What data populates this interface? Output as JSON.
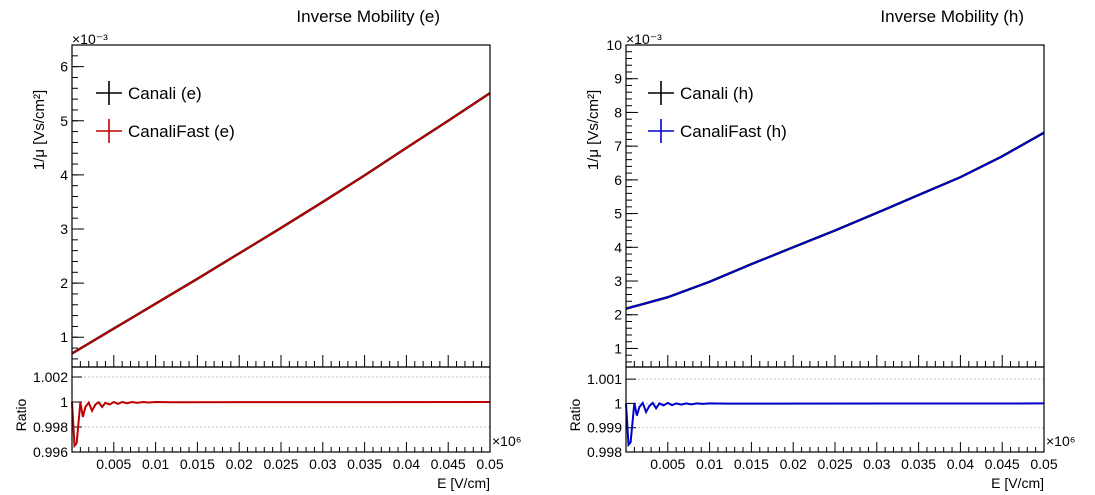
{
  "colors": {
    "axis": "#000000",
    "grid": "#c8c8c8",
    "black": "#000000",
    "red": "#c00000",
    "blue": "#0000cc"
  },
  "chart_data": [
    {
      "type": "line",
      "title": "Inverse Mobility (e)",
      "ylabel": "1/μ [Vs/cm²]",
      "y_exponent": "×10⁻³",
      "xlabel": "E [V/cm]",
      "x_exponent": "×10⁶",
      "xlim": [
        0,
        0.05
      ],
      "ylim": [
        0.45,
        6.4
      ],
      "x_ticks": [
        0.005,
        0.01,
        0.015,
        0.02,
        0.025,
        0.03,
        0.035,
        0.04,
        0.045,
        0.05
      ],
      "x_tick_labels": [
        "0.005",
        "0.01",
        "0.015",
        "0.02",
        "0.025",
        "0.03",
        "0.035",
        "0.04",
        "0.045",
        "0.05"
      ],
      "y_ticks": [
        1,
        2,
        3,
        4,
        5,
        6
      ],
      "y_tick_labels": [
        "1",
        "2",
        "3",
        "4",
        "5",
        "6"
      ],
      "legend": {
        "placement": "top-left",
        "entries": [
          {
            "label": "Canali (e)",
            "color": "#000000"
          },
          {
            "label": "CanaliFast (e)",
            "color": "#c00000"
          }
        ]
      },
      "series": [
        {
          "name": "Canali (e)",
          "color": "#000000",
          "x": [
            0,
            0.005,
            0.01,
            0.015,
            0.02,
            0.025,
            0.03,
            0.035,
            0.04,
            0.045,
            0.05
          ],
          "y": [
            0.7,
            1.16,
            1.62,
            2.08,
            2.55,
            3.02,
            3.5,
            3.99,
            4.5,
            5.0,
            5.51
          ]
        },
        {
          "name": "CanaliFast (e)",
          "color": "#c00000",
          "x": [
            0,
            0.005,
            0.01,
            0.015,
            0.02,
            0.025,
            0.03,
            0.035,
            0.04,
            0.045,
            0.05
          ],
          "y": [
            0.7,
            1.16,
            1.62,
            2.08,
            2.55,
            3.02,
            3.5,
            3.99,
            4.5,
            5.0,
            5.51
          ]
        }
      ],
      "ratio": {
        "ylabel": "Ratio",
        "ylim": [
          0.996,
          1.0028
        ],
        "y_ticks": [
          0.996,
          0.998,
          1,
          1.002
        ],
        "y_tick_labels": [
          "0.996",
          "0.998",
          "1",
          "1.002"
        ],
        "grid_y": [
          0.998,
          1,
          1.002
        ],
        "color": "#c00000",
        "x": [
          0,
          0.0003,
          0.00055,
          0.0008,
          0.001,
          0.0013,
          0.0016,
          0.002,
          0.0024,
          0.0028,
          0.0032,
          0.0036,
          0.004,
          0.0045,
          0.005,
          0.0055,
          0.006,
          0.0066,
          0.0072,
          0.0078,
          0.0085,
          0.0092,
          0.01,
          0.012,
          0.05
        ],
        "y": [
          1.0,
          0.9965,
          0.9967,
          0.9985,
          0.99998,
          0.9988,
          0.9996,
          0.99995,
          0.9993,
          0.9998,
          0.99998,
          0.9996,
          0.99993,
          0.9998,
          1.0,
          0.99985,
          1.0,
          0.9999,
          1.0,
          0.99993,
          1.0,
          0.99996,
          1.0,
          0.99998,
          1.0
        ]
      }
    },
    {
      "type": "line",
      "title": "Inverse Mobility (h)",
      "ylabel": "1/μ [Vs/cm²]",
      "y_exponent": "×10⁻³",
      "xlabel": "E [V/cm]",
      "x_exponent": "×10⁶",
      "xlim": [
        0,
        0.05
      ],
      "ylim": [
        0.45,
        10
      ],
      "x_ticks": [
        0.005,
        0.01,
        0.015,
        0.02,
        0.025,
        0.03,
        0.035,
        0.04,
        0.045,
        0.05
      ],
      "x_tick_labels": [
        "0.005",
        "0.01",
        "0.015",
        "0.02",
        "0.025",
        "0.03",
        "0.035",
        "0.04",
        "0.045",
        "0.05"
      ],
      "y_ticks": [
        1,
        2,
        3,
        4,
        5,
        6,
        7,
        8,
        9,
        10
      ],
      "y_tick_labels": [
        "1",
        "2",
        "3",
        "4",
        "5",
        "6",
        "7",
        "8",
        "9",
        "10"
      ],
      "legend": {
        "placement": "top-left",
        "entries": [
          {
            "label": "Canali (h)",
            "color": "#000000"
          },
          {
            "label": "CanaliFast (h)",
            "color": "#0000cc"
          }
        ]
      },
      "series": [
        {
          "name": "Canali (h)",
          "color": "#000000",
          "x": [
            0,
            0.005,
            0.01,
            0.015,
            0.02,
            0.025,
            0.03,
            0.035,
            0.04,
            0.045,
            0.05
          ],
          "y": [
            2.18,
            2.52,
            2.98,
            3.5,
            4.0,
            4.5,
            5.02,
            5.55,
            6.08,
            6.7,
            7.4
          ]
        },
        {
          "name": "CanaliFast (h)",
          "color": "#0000cc",
          "x": [
            0,
            0.005,
            0.01,
            0.015,
            0.02,
            0.025,
            0.03,
            0.035,
            0.04,
            0.045,
            0.05
          ],
          "y": [
            2.18,
            2.52,
            2.98,
            3.5,
            4.0,
            4.5,
            5.02,
            5.55,
            6.08,
            6.7,
            7.4
          ]
        }
      ],
      "ratio": {
        "ylabel": "Ratio",
        "ylim": [
          0.998,
          1.0015
        ],
        "y_ticks": [
          0.998,
          0.999,
          1,
          1.001
        ],
        "y_tick_labels": [
          "0.998",
          "0.999",
          "1",
          "1.001"
        ],
        "grid_y": [
          0.999,
          1,
          1.001
        ],
        "color": "#0000cc",
        "x": [
          0,
          0.0003,
          0.00055,
          0.0008,
          0.001,
          0.0013,
          0.0016,
          0.002,
          0.0024,
          0.0028,
          0.0032,
          0.0036,
          0.004,
          0.0045,
          0.005,
          0.0055,
          0.006,
          0.0066,
          0.0072,
          0.0078,
          0.0085,
          0.0092,
          0.01,
          0.012,
          0.05
        ],
        "y": [
          1.0,
          0.9983,
          0.9984,
          0.9993,
          1.00002,
          0.9995,
          0.99985,
          1.00002,
          0.99965,
          0.9999,
          1.00002,
          0.9998,
          1.0,
          0.99992,
          1.00002,
          0.99993,
          1.0,
          0.99995,
          1.0,
          0.99996,
          1.0,
          0.99998,
          1.0,
          0.99999,
          1.0
        ]
      }
    }
  ]
}
